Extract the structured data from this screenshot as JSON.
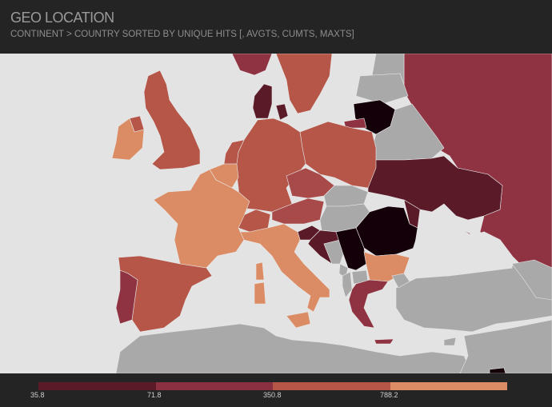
{
  "header": {
    "title": "GEO LOCATION",
    "subtitle": "CONTINENT > COUNTRY SORTED BY UNIQUE HITS [, AVGTS, CUMTS, MAXTS]"
  },
  "colors": {
    "background": "#242424",
    "sea": "#e3e3e3",
    "no_data": "#a9a9a9",
    "scale": [
      "#5a1a28",
      "#8b3040",
      "#b55648",
      "#db8c64"
    ],
    "highest": "#130008"
  },
  "legend": {
    "ticks": [
      "35.8",
      "71.8",
      "350.8",
      "788.2"
    ]
  }
}
